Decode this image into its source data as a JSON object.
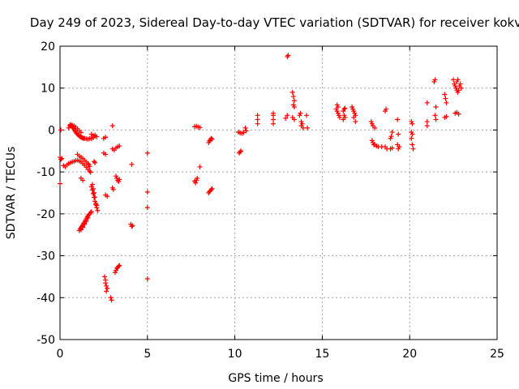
{
  "chart_data": {
    "type": "scatter",
    "title": "Day 249 of 2023, Sidereal Day-to-day VTEC variation (SDTVAR) for receiver kokv",
    "xlabel": "GPS time / hours",
    "ylabel": "SDTVAR / TECUs",
    "xlim": [
      0,
      25
    ],
    "ylim": [
      -50,
      20
    ],
    "xticks": [
      "0",
      "5",
      "10",
      "15",
      "20",
      "25"
    ],
    "yticks": [
      "-50",
      "-40",
      "-30",
      "-20",
      "-10",
      "0",
      "10",
      "20"
    ],
    "grid": true,
    "marker": "+",
    "color": "#ff0000",
    "series": [
      {
        "name": "SDTVAR",
        "points": [
          [
            0.0,
            -6.5
          ],
          [
            0.05,
            -7.0
          ],
          [
            0.1,
            -6.8
          ],
          [
            0.0,
            -12.8
          ],
          [
            0.05,
            0.0
          ],
          [
            0.2,
            -8.5
          ],
          [
            0.3,
            -8.8
          ],
          [
            0.4,
            -8.3
          ],
          [
            0.5,
            -8.0
          ],
          [
            0.6,
            -7.8
          ],
          [
            0.7,
            -7.6
          ],
          [
            0.8,
            -7.5
          ],
          [
            0.9,
            -7.3
          ],
          [
            1.0,
            -7.2
          ],
          [
            1.1,
            -7.4
          ],
          [
            1.2,
            -7.6
          ],
          [
            1.3,
            -8.0
          ],
          [
            1.4,
            -8.4
          ],
          [
            1.5,
            -8.9
          ],
          [
            1.6,
            -9.4
          ],
          [
            1.7,
            -9.8
          ],
          [
            1.75,
            -10.1
          ],
          [
            0.5,
            0.5
          ],
          [
            0.55,
            1.0
          ],
          [
            0.6,
            1.2
          ],
          [
            0.65,
            1.0
          ],
          [
            0.7,
            0.8
          ],
          [
            0.75,
            0.5
          ],
          [
            0.8,
            0.2
          ],
          [
            0.85,
            -0.2
          ],
          [
            0.9,
            -0.5
          ],
          [
            0.95,
            -0.8
          ],
          [
            1.0,
            -1.0
          ],
          [
            1.05,
            -1.2
          ],
          [
            1.1,
            -1.4
          ],
          [
            1.15,
            -1.6
          ],
          [
            1.2,
            -1.7
          ],
          [
            1.25,
            -1.8
          ],
          [
            1.3,
            -1.9
          ],
          [
            1.35,
            -2.0
          ],
          [
            1.4,
            -2.0
          ],
          [
            1.5,
            -2.1
          ],
          [
            1.6,
            -2.2
          ],
          [
            1.7,
            -2.0
          ],
          [
            1.8,
            -2.1
          ],
          [
            1.9,
            -1.8
          ],
          [
            2.0,
            -1.5
          ],
          [
            2.1,
            -1.6
          ],
          [
            0.6,
            1.3
          ],
          [
            0.7,
            1.2
          ],
          [
            0.8,
            1.0
          ],
          [
            0.9,
            0.7
          ],
          [
            1.0,
            0.3
          ],
          [
            1.1,
            -0.2
          ],
          [
            1.2,
            -0.6
          ],
          [
            1.0,
            -5.8
          ],
          [
            1.1,
            -6.2
          ],
          [
            1.2,
            -6.5
          ],
          [
            1.3,
            -6.8
          ],
          [
            1.4,
            -7.2
          ],
          [
            1.5,
            -7.6
          ],
          [
            1.6,
            -8.0
          ],
          [
            1.65,
            -8.3
          ],
          [
            1.7,
            -8.7
          ],
          [
            1.2,
            -11.5
          ],
          [
            1.3,
            -12.0
          ],
          [
            1.8,
            -1.0
          ],
          [
            1.9,
            -1.4
          ],
          [
            2.0,
            -1.2
          ],
          [
            1.8,
            -13.5
          ],
          [
            1.85,
            -14.3
          ],
          [
            1.9,
            -15.2
          ],
          [
            1.95,
            -16.1
          ],
          [
            2.0,
            -17.0
          ],
          [
            2.05,
            -17.8
          ],
          [
            2.1,
            -18.5
          ],
          [
            2.15,
            -19.2
          ],
          [
            1.85,
            -13.0
          ],
          [
            1.9,
            -14.0
          ],
          [
            1.95,
            -15.0
          ],
          [
            2.0,
            -16.0
          ],
          [
            2.05,
            -17.5
          ],
          [
            2.1,
            -18.0
          ],
          [
            1.1,
            -24.0
          ],
          [
            1.15,
            -23.6
          ],
          [
            1.2,
            -23.3
          ],
          [
            1.25,
            -23.0
          ],
          [
            1.3,
            -22.7
          ],
          [
            1.35,
            -22.3
          ],
          [
            1.4,
            -22.0
          ],
          [
            1.45,
            -21.6
          ],
          [
            1.5,
            -21.2
          ],
          [
            1.55,
            -20.8
          ],
          [
            1.6,
            -20.5
          ],
          [
            1.65,
            -20.2
          ],
          [
            1.7,
            -20.0
          ],
          [
            1.75,
            -19.7
          ],
          [
            1.8,
            -19.5
          ],
          [
            1.2,
            -23.8
          ],
          [
            1.3,
            -23.2
          ],
          [
            1.4,
            -22.5
          ],
          [
            1.5,
            -21.8
          ],
          [
            1.6,
            -21.0
          ],
          [
            1.95,
            -7.5
          ],
          [
            2.0,
            -7.8
          ],
          [
            2.5,
            -2.0
          ],
          [
            2.6,
            -1.7
          ],
          [
            2.5,
            -5.5
          ],
          [
            2.6,
            -5.8
          ],
          [
            2.6,
            -15.5
          ],
          [
            2.7,
            -15.8
          ],
          [
            2.55,
            -35.0
          ],
          [
            2.6,
            -35.8
          ],
          [
            2.6,
            -36.5
          ],
          [
            2.65,
            -37.2
          ],
          [
            2.7,
            -37.8
          ],
          [
            2.65,
            -38.5
          ],
          [
            2.9,
            -40.0
          ],
          [
            2.95,
            -40.6
          ],
          [
            3.0,
            1.0
          ],
          [
            3.0,
            -13.8
          ],
          [
            3.05,
            -14.2
          ],
          [
            3.0,
            -4.5
          ],
          [
            3.1,
            -4.8
          ],
          [
            3.2,
            -4.3
          ],
          [
            3.3,
            -4.0
          ],
          [
            3.4,
            -3.8
          ],
          [
            3.2,
            -11.0
          ],
          [
            3.25,
            -11.5
          ],
          [
            3.3,
            -12.0
          ],
          [
            3.35,
            -12.3
          ],
          [
            3.4,
            -11.8
          ],
          [
            3.15,
            -34.0
          ],
          [
            3.2,
            -33.5
          ],
          [
            3.25,
            -33.0
          ],
          [
            3.3,
            -32.8
          ],
          [
            3.35,
            -32.5
          ],
          [
            3.4,
            -32.3
          ],
          [
            4.1,
            -8.2
          ],
          [
            4.05,
            -22.5
          ],
          [
            4.1,
            -23.0
          ],
          [
            4.15,
            -22.8
          ],
          [
            5.0,
            -5.5
          ],
          [
            5.0,
            -14.8
          ],
          [
            5.0,
            -18.5
          ],
          [
            5.0,
            -35.5
          ],
          [
            7.7,
            -12.2
          ],
          [
            7.75,
            -12.6
          ],
          [
            7.8,
            -12.0
          ],
          [
            7.85,
            -11.5
          ],
          [
            7.7,
            0.8
          ],
          [
            7.8,
            0.9
          ],
          [
            7.9,
            0.7
          ],
          [
            8.0,
            0.6
          ],
          [
            8.0,
            -8.8
          ],
          [
            8.5,
            -3.0
          ],
          [
            8.55,
            -2.6
          ],
          [
            8.6,
            -2.3
          ],
          [
            8.65,
            -2.0
          ],
          [
            8.7,
            -2.2
          ],
          [
            8.5,
            -15.0
          ],
          [
            8.55,
            -14.7
          ],
          [
            8.6,
            -14.5
          ],
          [
            8.65,
            -14.2
          ],
          [
            8.7,
            -14.0
          ],
          [
            10.2,
            -0.5
          ],
          [
            10.3,
            -0.7
          ],
          [
            10.4,
            -0.8
          ],
          [
            10.5,
            -0.6
          ],
          [
            10.6,
            0.5
          ],
          [
            10.65,
            -0.2
          ],
          [
            10.25,
            -5.5
          ],
          [
            10.3,
            -5.2
          ],
          [
            10.35,
            -5.0
          ],
          [
            11.3,
            3.5
          ],
          [
            11.3,
            2.5
          ],
          [
            11.3,
            1.5
          ],
          [
            12.2,
            3.5
          ],
          [
            12.2,
            4.0
          ],
          [
            12.2,
            2.5
          ],
          [
            12.2,
            1.5
          ],
          [
            12.9,
            2.8
          ],
          [
            13.0,
            3.5
          ],
          [
            13.0,
            17.5
          ],
          [
            13.05,
            17.8
          ],
          [
            13.3,
            9.0
          ],
          [
            13.35,
            8.0
          ],
          [
            13.4,
            7.0
          ],
          [
            13.35,
            6.0
          ],
          [
            13.4,
            5.5
          ],
          [
            13.3,
            3.0
          ],
          [
            13.4,
            2.5
          ],
          [
            13.7,
            3.5
          ],
          [
            13.75,
            4.0
          ],
          [
            13.8,
            2.0
          ],
          [
            13.85,
            1.5
          ],
          [
            13.9,
            0.5
          ],
          [
            13.8,
            1.0
          ],
          [
            14.1,
            3.5
          ],
          [
            14.15,
            0.5
          ],
          [
            15.8,
            5.0
          ],
          [
            15.85,
            4.5
          ],
          [
            15.9,
            4.0
          ],
          [
            15.95,
            3.5
          ],
          [
            16.0,
            3.0
          ],
          [
            15.85,
            6.0
          ],
          [
            15.9,
            5.5
          ],
          [
            16.2,
            4.5
          ],
          [
            16.25,
            5.0
          ],
          [
            16.3,
            5.2
          ],
          [
            16.25,
            3.5
          ],
          [
            16.3,
            3.0
          ],
          [
            16.2,
            2.5
          ],
          [
            16.7,
            5.5
          ],
          [
            16.75,
            5.0
          ],
          [
            16.8,
            4.5
          ],
          [
            16.85,
            4.0
          ],
          [
            16.9,
            3.5
          ],
          [
            16.8,
            3.0
          ],
          [
            16.9,
            2.0
          ],
          [
            17.8,
            2.0
          ],
          [
            17.85,
            1.5
          ],
          [
            17.9,
            1.0
          ],
          [
            18.0,
            0.5
          ],
          [
            17.85,
            -2.5
          ],
          [
            17.9,
            -3.0
          ],
          [
            17.95,
            -3.5
          ],
          [
            18.0,
            -3.5
          ],
          [
            18.1,
            -3.8
          ],
          [
            18.2,
            -4.0
          ],
          [
            18.4,
            -4.0
          ],
          [
            18.6,
            4.5
          ],
          [
            18.65,
            5.0
          ],
          [
            18.6,
            -4.0
          ],
          [
            18.7,
            -4.5
          ],
          [
            18.9,
            -4.5
          ],
          [
            19.0,
            -4.3
          ],
          [
            18.9,
            -2.0
          ],
          [
            18.95,
            -1.5
          ],
          [
            19.0,
            -0.5
          ],
          [
            19.3,
            2.5
          ],
          [
            19.35,
            -1.0
          ],
          [
            19.3,
            -3.5
          ],
          [
            19.4,
            -4.0
          ],
          [
            19.35,
            -4.5
          ],
          [
            20.1,
            2.0
          ],
          [
            20.15,
            1.5
          ],
          [
            20.1,
            -0.5
          ],
          [
            20.15,
            -1.0
          ],
          [
            20.1,
            -2.0
          ],
          [
            20.15,
            -3.5
          ],
          [
            20.2,
            -4.5
          ],
          [
            21.0,
            6.5
          ],
          [
            21.0,
            2.0
          ],
          [
            21.0,
            1.0
          ],
          [
            21.4,
            11.5
          ],
          [
            21.45,
            12.0
          ],
          [
            21.5,
            5.5
          ],
          [
            21.45,
            3.5
          ],
          [
            21.5,
            2.5
          ],
          [
            22.0,
            8.5
          ],
          [
            22.05,
            7.5
          ],
          [
            22.1,
            6.5
          ],
          [
            22.0,
            3.0
          ],
          [
            22.1,
            3.2
          ],
          [
            22.5,
            12.0
          ],
          [
            22.55,
            11.0
          ],
          [
            22.6,
            10.5
          ],
          [
            22.65,
            10.0
          ],
          [
            22.7,
            9.5
          ],
          [
            22.75,
            9.0
          ],
          [
            22.8,
            9.5
          ],
          [
            22.85,
            10.5
          ],
          [
            22.9,
            11.0
          ],
          [
            22.95,
            10.0
          ],
          [
            22.7,
            11.5
          ],
          [
            22.75,
            12.0
          ],
          [
            22.6,
            4.0
          ],
          [
            22.7,
            4.2
          ],
          [
            22.8,
            3.8
          ]
        ]
      }
    ]
  }
}
